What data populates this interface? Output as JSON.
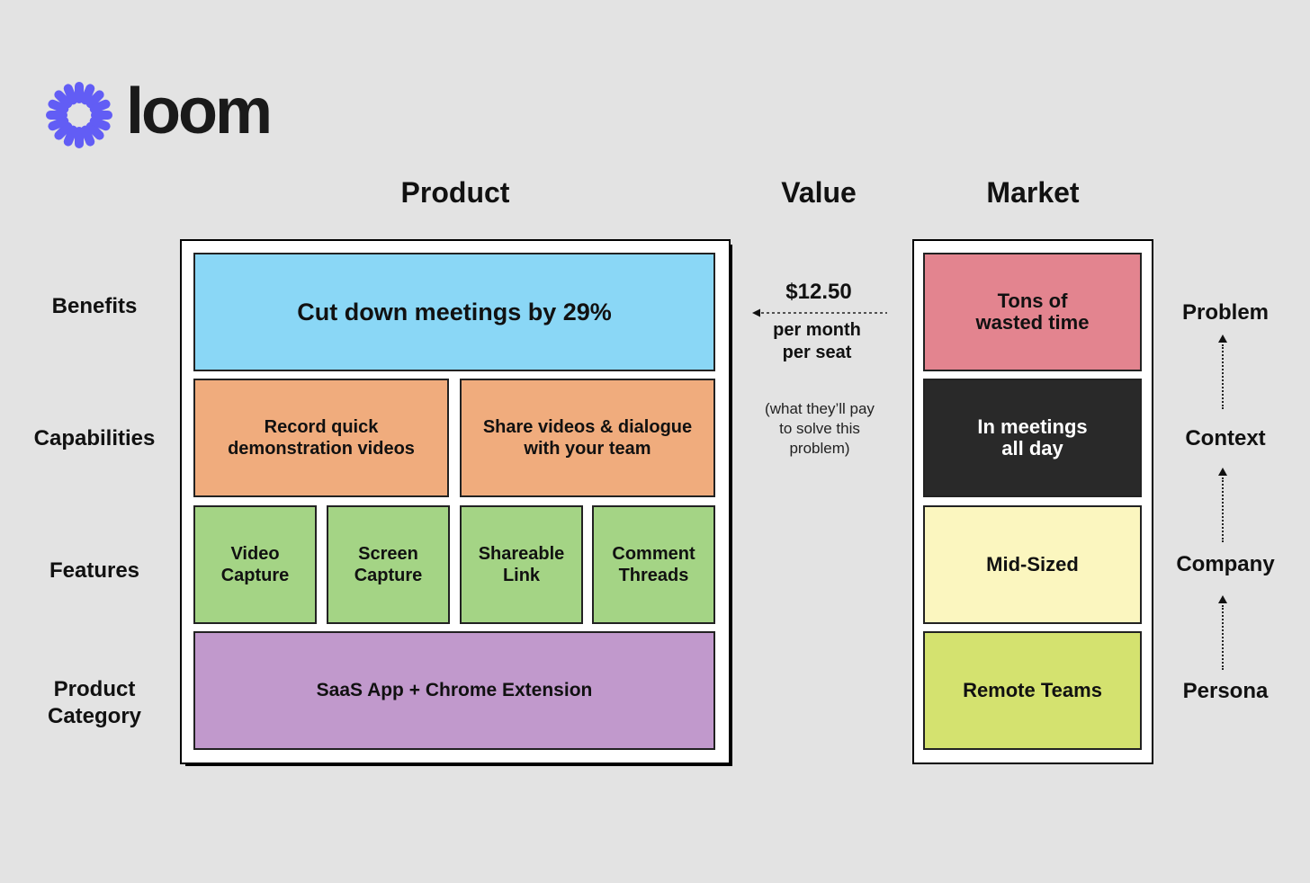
{
  "logo": {
    "wordmark": "loom",
    "icon": "loom-starburst-icon",
    "brand_color": "#625df5"
  },
  "headers": {
    "product": "Product",
    "value": "Value",
    "market": "Market"
  },
  "row_labels": {
    "benefits": "Benefits",
    "capabilities": "Capabilities",
    "features": "Features",
    "category_line1": "Product",
    "category_line2": "Category"
  },
  "product": {
    "benefit": "Cut down meetings by 29%",
    "capabilities": [
      {
        "line1": "Record quick",
        "line2": "demonstration videos"
      },
      {
        "line1": "Share videos & dialogue",
        "line2": "with your team"
      }
    ],
    "features": [
      {
        "line1": "Video",
        "line2": "Capture"
      },
      {
        "line1": "Screen",
        "line2": "Capture"
      },
      {
        "line1": "Shareable",
        "line2": "Link"
      },
      {
        "line1": "Comment",
        "line2": "Threads"
      }
    ],
    "category": "SaaS App + Chrome Extension"
  },
  "value": {
    "price": "$12.50",
    "per_line1": "per month",
    "per_line2": "per seat",
    "note_line1": "(what they’ll pay",
    "note_line2": "to solve this",
    "note_line3": "problem)"
  },
  "market": {
    "problem": {
      "line1": "Tons of",
      "line2": "wasted time"
    },
    "context": {
      "line1": "In meetings",
      "line2": "all day"
    },
    "company": "Mid-Sized",
    "persona": "Remote Teams"
  },
  "side_labels": {
    "problem": "Problem",
    "context": "Context",
    "company": "Company",
    "persona": "Persona"
  },
  "colors": {
    "background": "#e3e3e3",
    "benefit": "#8ad7f6",
    "capability": "#f0ac7d",
    "feature": "#a4d485",
    "category": "#c199cc",
    "problem": "#e3848f",
    "context": "#292929",
    "company": "#fbf6bf",
    "persona": "#d4e26f"
  }
}
